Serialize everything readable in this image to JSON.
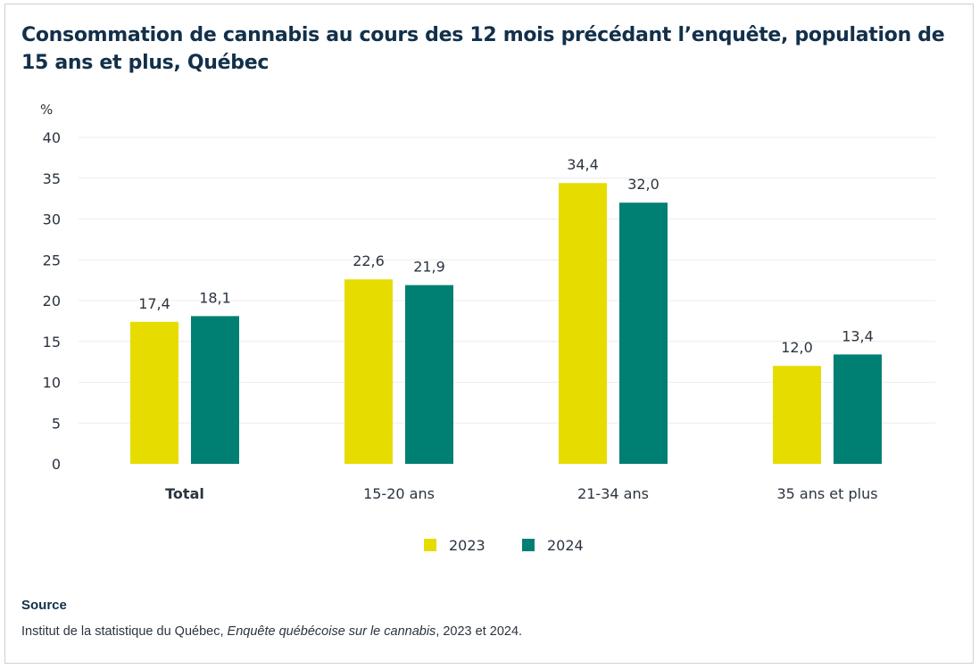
{
  "chart_data": {
    "type": "bar",
    "title": "Consommation de cannabis au cours des 12 mois précédant l’enquête, population de 15 ans et plus, Québec",
    "ylabel": "%",
    "ylim": [
      0,
      40
    ],
    "yticks": [
      0,
      5,
      10,
      15,
      20,
      25,
      30,
      35,
      40
    ],
    "grid": true,
    "categories": [
      "Total",
      "15-20 ans",
      "21-34 ans",
      "35 ans et plus"
    ],
    "series": [
      {
        "name": "2023",
        "color": "#E6DC00",
        "values": [
          17.4,
          22.6,
          34.4,
          12.0
        ],
        "labels": [
          "17,4",
          "22,6",
          "34,4",
          "12,0"
        ]
      },
      {
        "name": "2024",
        "color": "#007F73",
        "values": [
          18.1,
          21.9,
          32.0,
          13.4
        ],
        "labels": [
          "18,1",
          "21,9",
          "32,0",
          "13,4"
        ]
      }
    ],
    "legend_position": "bottom"
  },
  "source": {
    "heading": "Source",
    "text_before": "Institut de la statistique du Québec, ",
    "text_italic": "Enquête québécoise sur le cannabis",
    "text_after": ", 2023 et 2024."
  }
}
